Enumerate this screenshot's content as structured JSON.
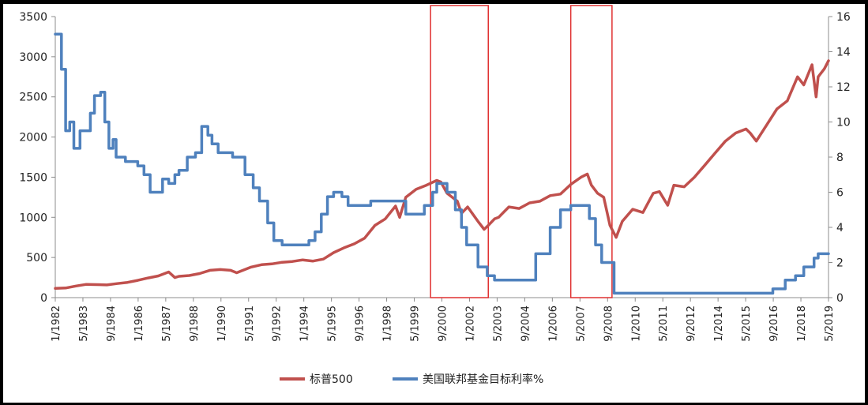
{
  "chart_data": {
    "type": "line",
    "title": "",
    "xlabel": "",
    "ylabel": "",
    "x_tick_labels": [
      "1/1982",
      "5/1983",
      "9/1984",
      "1/1986",
      "5/1987",
      "9/1988",
      "1/1990",
      "5/1991",
      "9/1992",
      "1/1994",
      "5/1995",
      "9/1996",
      "1/1998",
      "5/1999",
      "9/2000",
      "1/2002",
      "5/2003",
      "9/2004",
      "1/2006",
      "5/2007",
      "9/2008",
      "1/2010",
      "5/2011",
      "9/2012",
      "1/2014",
      "5/2015",
      "9/2016",
      "1/2018",
      "5/2019"
    ],
    "y_left": {
      "ylim": [
        0,
        3500
      ],
      "ticks": [
        "0",
        "500",
        "1000",
        "1500",
        "2000",
        "2500",
        "3000",
        "3500"
      ]
    },
    "y_right": {
      "ylim": [
        0,
        16
      ],
      "ticks": [
        "0",
        "2",
        "4",
        "6",
        "8",
        "10",
        "12",
        "14",
        "16"
      ]
    },
    "legend_position": "bottom",
    "grid": false,
    "series": [
      {
        "name": "标普500",
        "axis": "left",
        "color": "#c0504d",
        "x": [
          1982.0,
          1982.5,
          1983.0,
          1983.5,
          1984.0,
          1984.5,
          1985.0,
          1985.5,
          1986.0,
          1986.5,
          1987.0,
          1987.5,
          1987.8,
          1988.0,
          1988.5,
          1989.0,
          1989.5,
          1990.0,
          1990.5,
          1990.8,
          1991.0,
          1991.5,
          1992.0,
          1992.5,
          1993.0,
          1993.5,
          1994.0,
          1994.5,
          1995.0,
          1995.5,
          1996.0,
          1996.5,
          1997.0,
          1997.5,
          1998.0,
          1998.5,
          1998.7,
          1999.0,
          1999.5,
          2000.0,
          2000.5,
          2000.7,
          2001.0,
          2001.5,
          2001.7,
          2002.0,
          2002.5,
          2002.8,
          2003.0,
          2003.3,
          2003.5,
          2004.0,
          2004.5,
          2005.0,
          2005.5,
          2006.0,
          2006.5,
          2007.0,
          2007.5,
          2007.8,
          2008.0,
          2008.3,
          2008.6,
          2008.9,
          2009.2,
          2009.5,
          2010.0,
          2010.5,
          2011.0,
          2011.3,
          2011.7,
          2012.0,
          2012.5,
          2013.0,
          2013.5,
          2014.0,
          2014.5,
          2015.0,
          2015.5,
          2015.7,
          2016.0,
          2016.5,
          2017.0,
          2017.5,
          2018.0,
          2018.3,
          2018.7,
          2018.9,
          2019.0,
          2019.3,
          2019.5
        ],
        "values": [
          115,
          120,
          145,
          165,
          162,
          158,
          175,
          190,
          215,
          245,
          270,
          320,
          250,
          265,
          275,
          300,
          340,
          350,
          340,
          310,
          330,
          380,
          410,
          420,
          440,
          450,
          470,
          455,
          480,
          560,
          620,
          670,
          740,
          900,
          980,
          1140,
          1000,
          1250,
          1350,
          1400,
          1460,
          1440,
          1300,
          1200,
          1050,
          1130,
          950,
          850,
          900,
          980,
          1000,
          1130,
          1110,
          1180,
          1200,
          1270,
          1290,
          1410,
          1500,
          1540,
          1400,
          1300,
          1250,
          900,
          750,
          950,
          1100,
          1060,
          1300,
          1320,
          1150,
          1400,
          1380,
          1500,
          1650,
          1800,
          1950,
          2050,
          2100,
          2050,
          1950,
          2150,
          2350,
          2450,
          2750,
          2650,
          2900,
          2500,
          2750,
          2850,
          2950
        ]
      },
      {
        "name": "美国联邦基金目标利率%",
        "axis": "right",
        "color": "#4f81bd",
        "x": [
          1982.0,
          1982.3,
          1982.5,
          1982.7,
          1982.9,
          1983.0,
          1983.2,
          1983.5,
          1983.7,
          1983.9,
          1984.2,
          1984.4,
          1984.6,
          1984.8,
          1984.95,
          1985.1,
          1985.4,
          1985.7,
          1986.0,
          1986.3,
          1986.6,
          1986.9,
          1987.2,
          1987.5,
          1987.8,
          1988.0,
          1988.4,
          1988.8,
          1989.1,
          1989.4,
          1989.6,
          1989.9,
          1990.3,
          1990.6,
          1990.9,
          1991.2,
          1991.6,
          1991.9,
          1992.3,
          1992.6,
          1993.0,
          1993.5,
          1994.0,
          1994.3,
          1994.6,
          1994.9,
          1995.2,
          1995.5,
          1995.9,
          1996.2,
          1996.8,
          1997.3,
          1998.0,
          1998.8,
          1999.0,
          1999.4,
          1999.9,
          2000.3,
          2000.5,
          2001.0,
          2001.4,
          2001.7,
          2001.95,
          2002.5,
          2002.95,
          2003.3,
          2003.5,
          2004.5,
          2005.3,
          2006.0,
          2006.5,
          2007.0,
          2007.6,
          2007.9,
          2008.2,
          2008.5,
          2008.95,
          2009.1,
          2015.9,
          2016.8,
          2017.4,
          2017.9,
          2018.3,
          2018.8,
          2019.0,
          2019.5
        ],
        "values": [
          15,
          13,
          9.5,
          10,
          8.5,
          8.5,
          9.5,
          9.5,
          10.5,
          11.5,
          11.7,
          10,
          8.5,
          9,
          8,
          8,
          7.75,
          7.75,
          7.5,
          7,
          6,
          6,
          6.75,
          6.5,
          7,
          7.25,
          8,
          8.25,
          9.75,
          9.25,
          8.75,
          8.25,
          8.25,
          8,
          8,
          7,
          6.25,
          5.5,
          4.25,
          3.25,
          3,
          3,
          3,
          3.25,
          3.75,
          4.75,
          5.75,
          6,
          5.75,
          5.25,
          5.25,
          5.5,
          5.5,
          5.5,
          4.75,
          4.75,
          5.25,
          6,
          6.5,
          6,
          5,
          4,
          3,
          1.75,
          1.25,
          1,
          1,
          1,
          2.5,
          4,
          5,
          5.25,
          5.25,
          4.5,
          3,
          2,
          2,
          0.25,
          0.25,
          0.5,
          1,
          1.25,
          1.75,
          2.25,
          2.5,
          2.5
        ]
      }
    ],
    "highlight_boxes": [
      {
        "x_start": 2000.2,
        "x_end": 2003.0
      },
      {
        "x_start": 2007.0,
        "x_end": 2009.0
      }
    ]
  }
}
